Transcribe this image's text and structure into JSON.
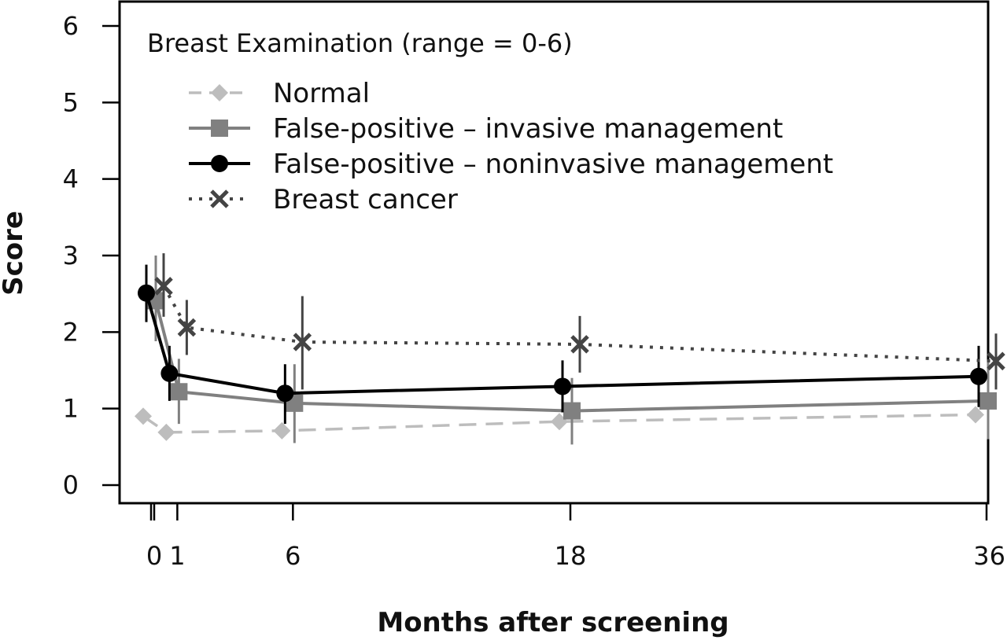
{
  "chart_data": {
    "type": "line",
    "title": "Breast Examination (range = 0-6)",
    "xlabel": "Months after screening",
    "ylabel": "Score",
    "x_ticks": [
      0,
      1,
      6,
      18,
      36
    ],
    "y_ticks": [
      0,
      1,
      2,
      3,
      4,
      5,
      6
    ],
    "xlim": [
      -1.5,
      36
    ],
    "ylim": [
      -0.25,
      6.3
    ],
    "grid": false,
    "legend_position": "top-left",
    "series": [
      {
        "name": "Normal",
        "marker": "diamond",
        "line_style": "dashed",
        "color": "#bdbdbd",
        "x": [
          0,
          1,
          6,
          18,
          36
        ],
        "y": [
          0.9,
          0.69,
          0.71,
          0.83,
          0.92
        ],
        "error_low": [
          0.82,
          0.63,
          0.64,
          0.75,
          0.84
        ],
        "error_high": [
          0.98,
          0.75,
          0.78,
          0.91,
          1.0
        ]
      },
      {
        "name": "False-positive – invasive management",
        "marker": "square",
        "line_style": "solid",
        "color": "#808080",
        "x": [
          0,
          1,
          6,
          18,
          36
        ],
        "y": [
          2.41,
          1.22,
          1.07,
          0.97,
          1.1
        ],
        "error_low": [
          1.88,
          0.8,
          0.55,
          0.53,
          0.6
        ],
        "error_high": [
          3.0,
          1.65,
          1.58,
          1.4,
          1.62
        ]
      },
      {
        "name": "False-positive – noninvasive management",
        "marker": "circle",
        "line_style": "solid",
        "color": "#000000",
        "x": [
          0,
          1,
          6,
          18,
          36
        ],
        "y": [
          2.51,
          1.46,
          1.2,
          1.29,
          1.42
        ],
        "error_low": [
          2.13,
          1.1,
          0.8,
          0.95,
          1.02
        ],
        "error_high": [
          2.88,
          1.82,
          1.58,
          1.63,
          1.82
        ]
      },
      {
        "name": "Breast cancer",
        "marker": "x",
        "line_style": "dotted",
        "color": "#444444",
        "x": [
          0,
          1,
          6,
          18,
          36
        ],
        "y": [
          2.6,
          2.06,
          1.87,
          1.84,
          1.62
        ],
        "error_low": [
          2.2,
          1.7,
          1.25,
          1.47,
          1.25
        ],
        "error_high": [
          3.03,
          2.42,
          2.47,
          2.21,
          1.98
        ]
      }
    ]
  }
}
